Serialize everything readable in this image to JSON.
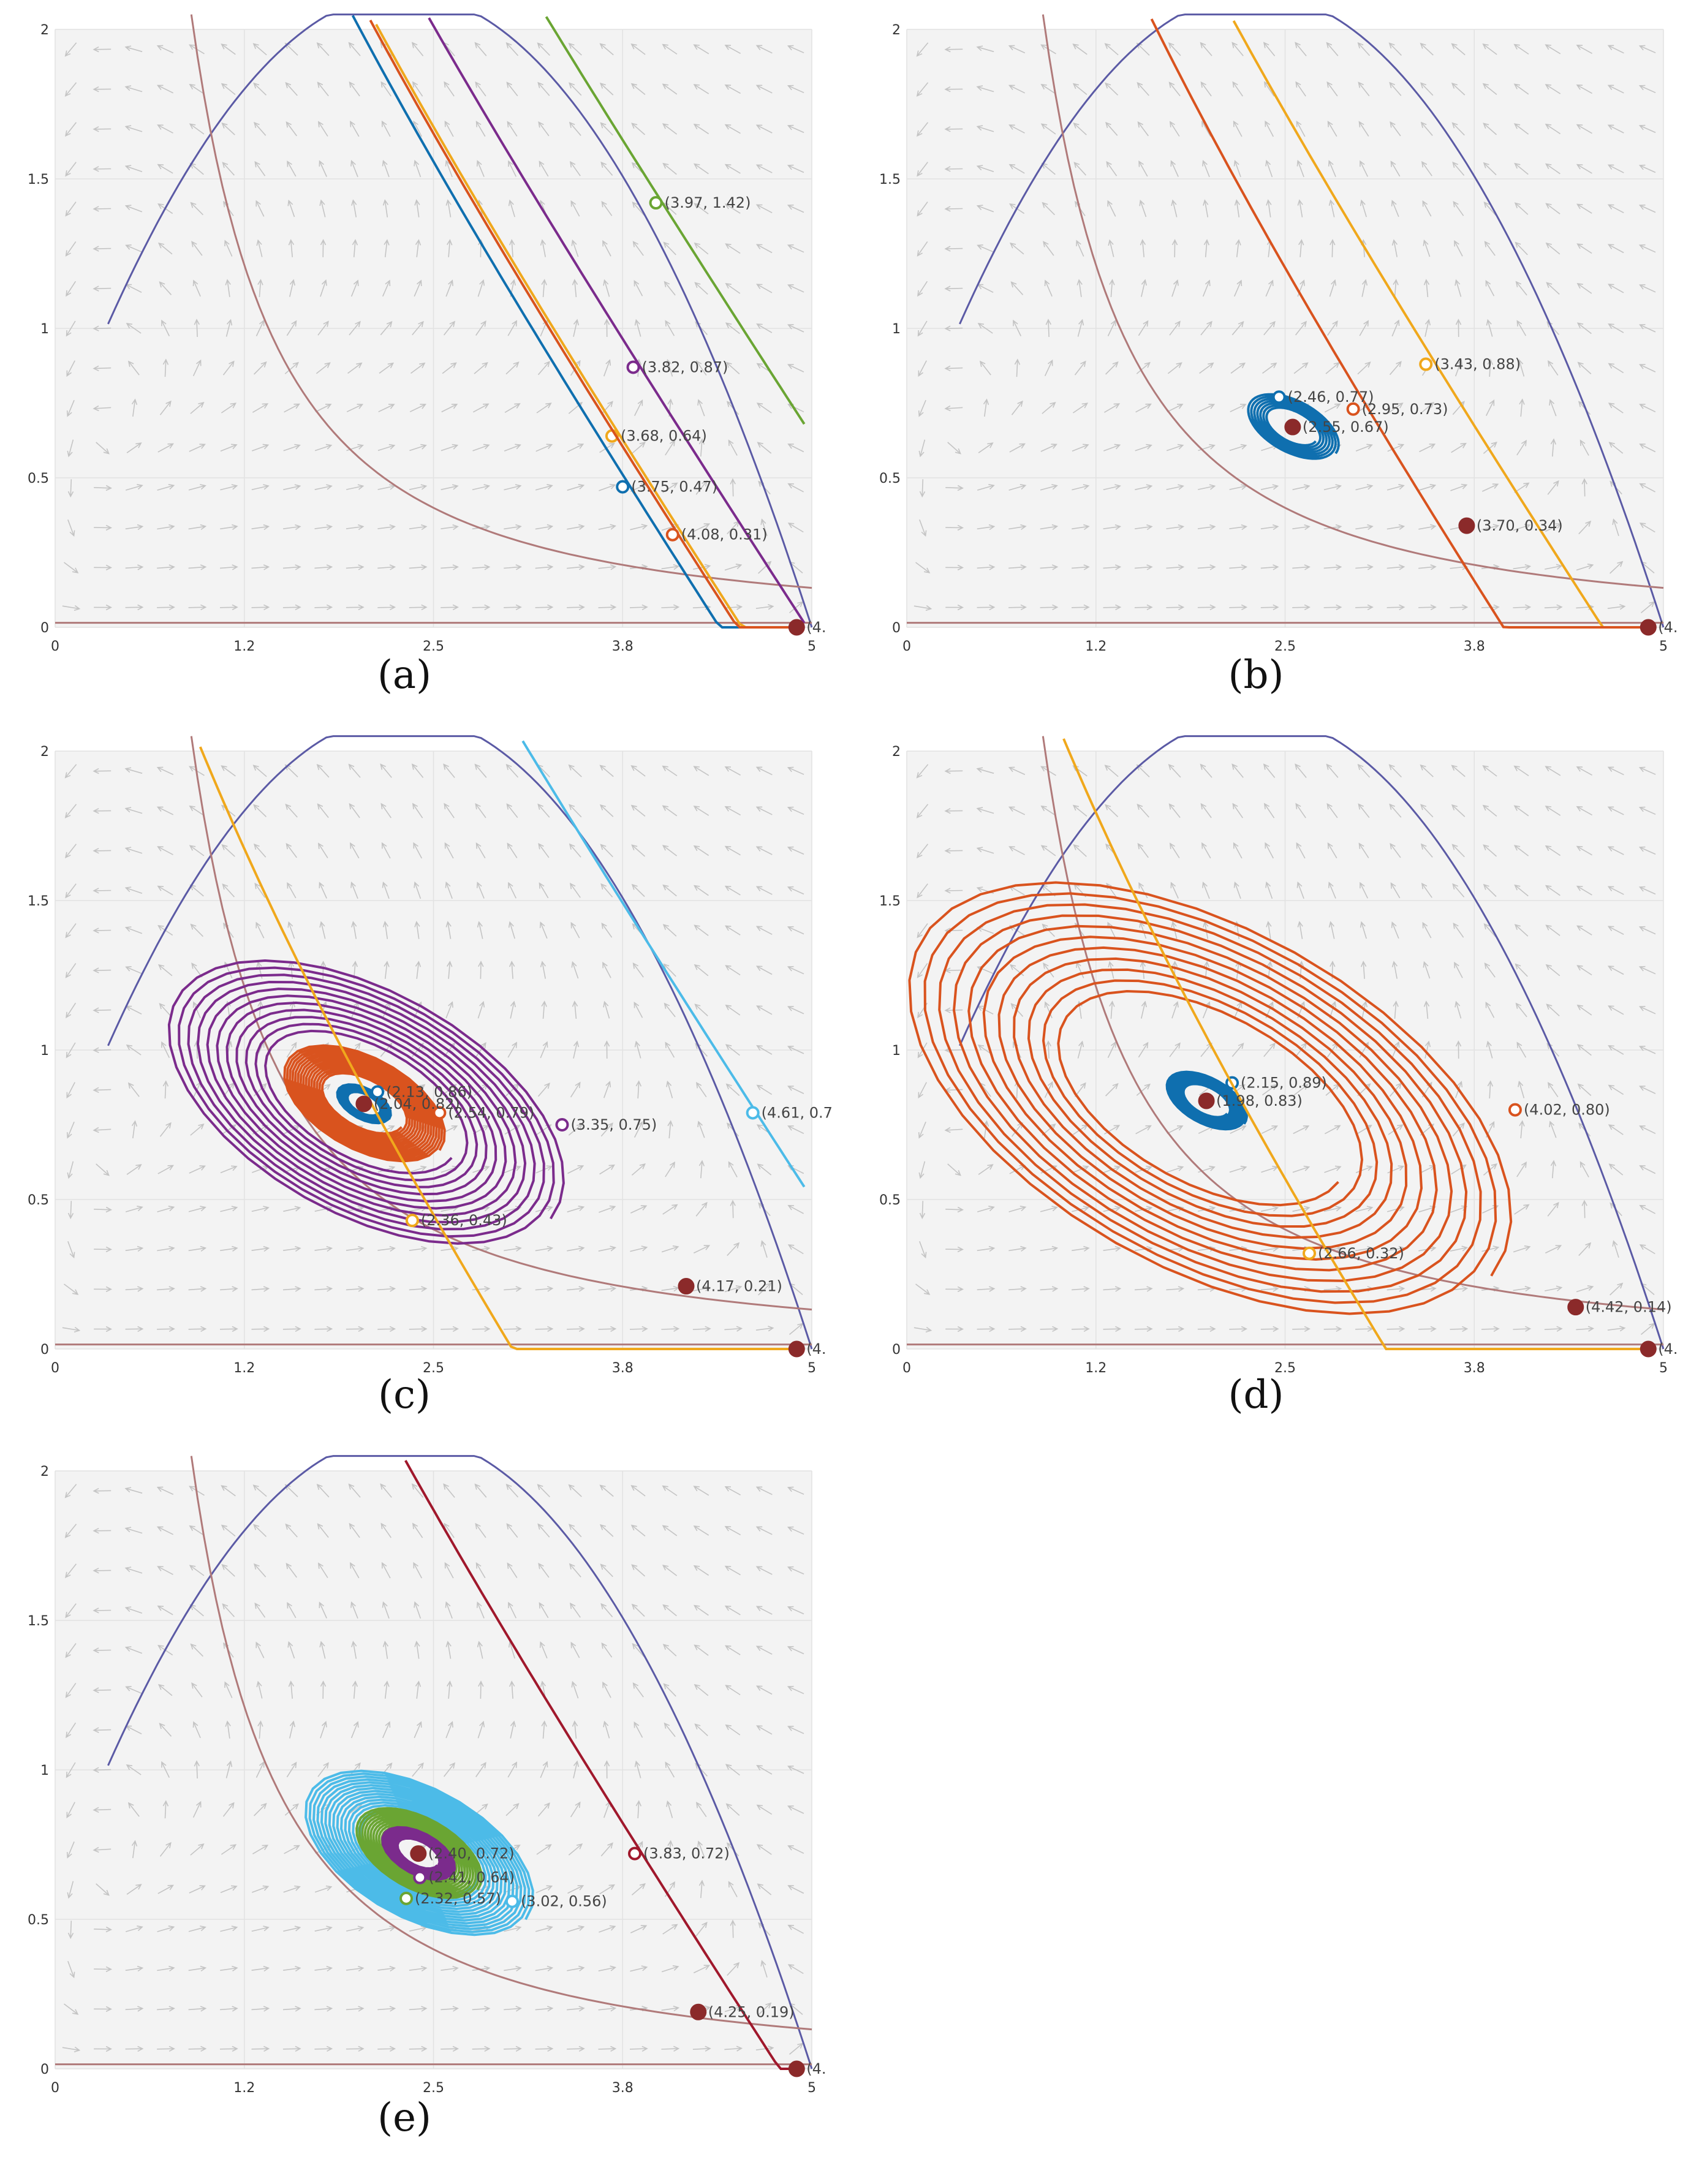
{
  "chart_data": [
    {
      "type": "line",
      "caption": "(a)",
      "xlim": [
        0,
        5
      ],
      "ylim": [
        0,
        2
      ],
      "xticks": [
        "0",
        "1.2",
        "2.5",
        "3.8",
        "5"
      ],
      "yticks": [
        "0",
        "0.5",
        "1",
        "1.5",
        "2"
      ],
      "equilibria": [
        {
          "x": 4.9,
          "y": 0.0,
          "label": "(4.",
          "filled": true,
          "color": "#8b2a2a"
        }
      ],
      "series": [
        {
          "name": "green",
          "color": "#6aa533",
          "spiral": 0,
          "start": {
            "x": 3.97,
            "y": 1.42
          },
          "label": "(3.97, 1.42)"
        },
        {
          "name": "purple",
          "color": "#7b2b8c",
          "spiral": 0,
          "start": {
            "x": 3.82,
            "y": 0.87
          },
          "label": "(3.82, 0.87)"
        },
        {
          "name": "yellow",
          "color": "#f0a81c",
          "spiral": 0,
          "start": {
            "x": 3.68,
            "y": 0.64
          },
          "label": "(3.68, 0.64)"
        },
        {
          "name": "blue",
          "color": "#0f6faf",
          "spiral": 0,
          "start": {
            "x": 3.75,
            "y": 0.47
          },
          "label": "(3.75, 0.47)"
        },
        {
          "name": "orange",
          "color": "#d9531e",
          "spiral": 0,
          "start": {
            "x": 4.08,
            "y": 0.31
          },
          "label": "(4.08, 0.31)"
        }
      ]
    },
    {
      "type": "line",
      "caption": "(b)",
      "xlim": [
        0,
        5
      ],
      "ylim": [
        0,
        2
      ],
      "xticks": [
        "0",
        "1.2",
        "2.5",
        "3.8",
        "5"
      ],
      "yticks": [
        "0",
        "0.5",
        "1",
        "1.5",
        "2"
      ],
      "equilibria": [
        {
          "x": 2.55,
          "y": 0.67,
          "label": "(2.55, 0.67)",
          "filled": true,
          "color": "#8b2a2a"
        },
        {
          "x": 3.7,
          "y": 0.34,
          "label": "(3.70, 0.34)",
          "filled": true,
          "color": "#8b2a2a"
        },
        {
          "x": 4.9,
          "y": 0.0,
          "label": "(4.",
          "filled": true,
          "color": "#8b2a2a"
        }
      ],
      "series": [
        {
          "name": "yellow",
          "color": "#f0a81c",
          "spiral": 0,
          "start": {
            "x": 3.43,
            "y": 0.88
          },
          "label": "(3.43, 0.88)"
        },
        {
          "name": "orange",
          "color": "#d9531e",
          "spiral": 0,
          "start": {
            "x": 2.95,
            "y": 0.73
          },
          "label": "(2.95, 0.73)"
        },
        {
          "name": "blue",
          "color": "#0f6faf",
          "spiral": 1,
          "start": {
            "x": 2.46,
            "y": 0.77
          },
          "label": "(2.46, 0.77)"
        }
      ]
    },
    {
      "type": "line",
      "caption": "(c)",
      "xlim": [
        0,
        5
      ],
      "ylim": [
        0,
        2
      ],
      "xticks": [
        "0",
        "1.2",
        "2.5",
        "3.8",
        "5"
      ],
      "yticks": [
        "0",
        "0.5",
        "1",
        "1.5",
        "2"
      ],
      "equilibria": [
        {
          "x": 2.04,
          "y": 0.82,
          "label": "(2.04, 0.82)",
          "filled": true,
          "color": "#8b2a2a"
        },
        {
          "x": 4.17,
          "y": 0.21,
          "label": "(4.17, 0.21)",
          "filled": true,
          "color": "#8b2a2a"
        },
        {
          "x": 4.9,
          "y": 0.0,
          "label": "(4.",
          "filled": true,
          "color": "#8b2a2a"
        }
      ],
      "series": [
        {
          "name": "light-blue",
          "color": "#4cbbe8",
          "spiral": 0,
          "start": {
            "x": 4.61,
            "y": 0.79
          },
          "label": "(4.61, 0.7"
        },
        {
          "name": "purple",
          "color": "#7b2b8c",
          "spiral": 2,
          "start": {
            "x": 3.35,
            "y": 0.75
          },
          "label": "(3.35, 0.75)"
        },
        {
          "name": "orange",
          "color": "#d9531e",
          "spiral": 3,
          "start": {
            "x": 2.54,
            "y": 0.79
          },
          "label": "(2.54, 0.79)"
        },
        {
          "name": "blue",
          "color": "#0f6faf",
          "spiral": 4,
          "start": {
            "x": 2.13,
            "y": 0.86
          },
          "label": "(2.13, 0.86)"
        },
        {
          "name": "yellow",
          "color": "#f0a81c",
          "spiral": 0,
          "start": {
            "x": 2.36,
            "y": 0.43
          },
          "label": "(2.36, 0.43)"
        }
      ]
    },
    {
      "type": "line",
      "caption": "(d)",
      "xlim": [
        0,
        5
      ],
      "ylim": [
        0,
        2
      ],
      "xticks": [
        "0",
        "1.2",
        "2.5",
        "3.8",
        "5"
      ],
      "yticks": [
        "0",
        "0.5",
        "1",
        "1.5",
        "2"
      ],
      "equilibria": [
        {
          "x": 1.98,
          "y": 0.83,
          "label": "(1.98, 0.83)",
          "filled": true,
          "color": "#8b2a2a"
        },
        {
          "x": 4.42,
          "y": 0.14,
          "label": "(4.42, 0.14)",
          "filled": true,
          "color": "#8b2a2a"
        },
        {
          "x": 4.9,
          "y": 0.0,
          "label": "(4.",
          "filled": true,
          "color": "#8b2a2a"
        }
      ],
      "series": [
        {
          "name": "orange",
          "color": "#d9531e",
          "spiral": 2,
          "start": {
            "x": 4.02,
            "y": 0.8
          },
          "label": "(4.02, 0.80)"
        },
        {
          "name": "blue",
          "color": "#0f6faf",
          "spiral": 2,
          "start": {
            "x": 2.15,
            "y": 0.89
          },
          "label": "(2.15, 0.89)"
        },
        {
          "name": "yellow",
          "color": "#f0a81c",
          "spiral": 0,
          "start": {
            "x": 2.66,
            "y": 0.32
          },
          "label": "(2.66, 0.32)"
        }
      ]
    },
    {
      "type": "line",
      "caption": "(e)",
      "xlim": [
        0,
        5
      ],
      "ylim": [
        0,
        2
      ],
      "xticks": [
        "0",
        "1.2",
        "2.5",
        "3.8",
        "5"
      ],
      "yticks": [
        "0",
        "0.5",
        "1",
        "1.5",
        "2"
      ],
      "equilibria": [
        {
          "x": 2.4,
          "y": 0.72,
          "label": "(2.40, 0.72)",
          "filled": true,
          "color": "#8b2a2a"
        },
        {
          "x": 4.25,
          "y": 0.19,
          "label": "(4.25, 0.19)",
          "filled": true,
          "color": "#8b2a2a"
        },
        {
          "x": 4.9,
          "y": 0.0,
          "label": "(4.",
          "filled": true,
          "color": "#8b2a2a"
        }
      ],
      "series": [
        {
          "name": "dark-red",
          "color": "#a0182c",
          "spiral": 0,
          "start": {
            "x": 3.83,
            "y": 0.72
          },
          "label": "(3.83, 0.72)"
        },
        {
          "name": "light-blue",
          "color": "#4cbbe8",
          "spiral": 3,
          "start": {
            "x": 3.02,
            "y": 0.56
          },
          "label": "(3.02, 0.56)"
        },
        {
          "name": "green",
          "color": "#6aa533",
          "spiral": 2,
          "start": {
            "x": 2.32,
            "y": 0.57
          },
          "label": "(2.32, 0.57)"
        },
        {
          "name": "purple",
          "color": "#7b2b8c",
          "spiral": 4,
          "start": {
            "x": 2.41,
            "y": 0.64
          },
          "label": "(2.41, 0.64)"
        }
      ]
    }
  ]
}
